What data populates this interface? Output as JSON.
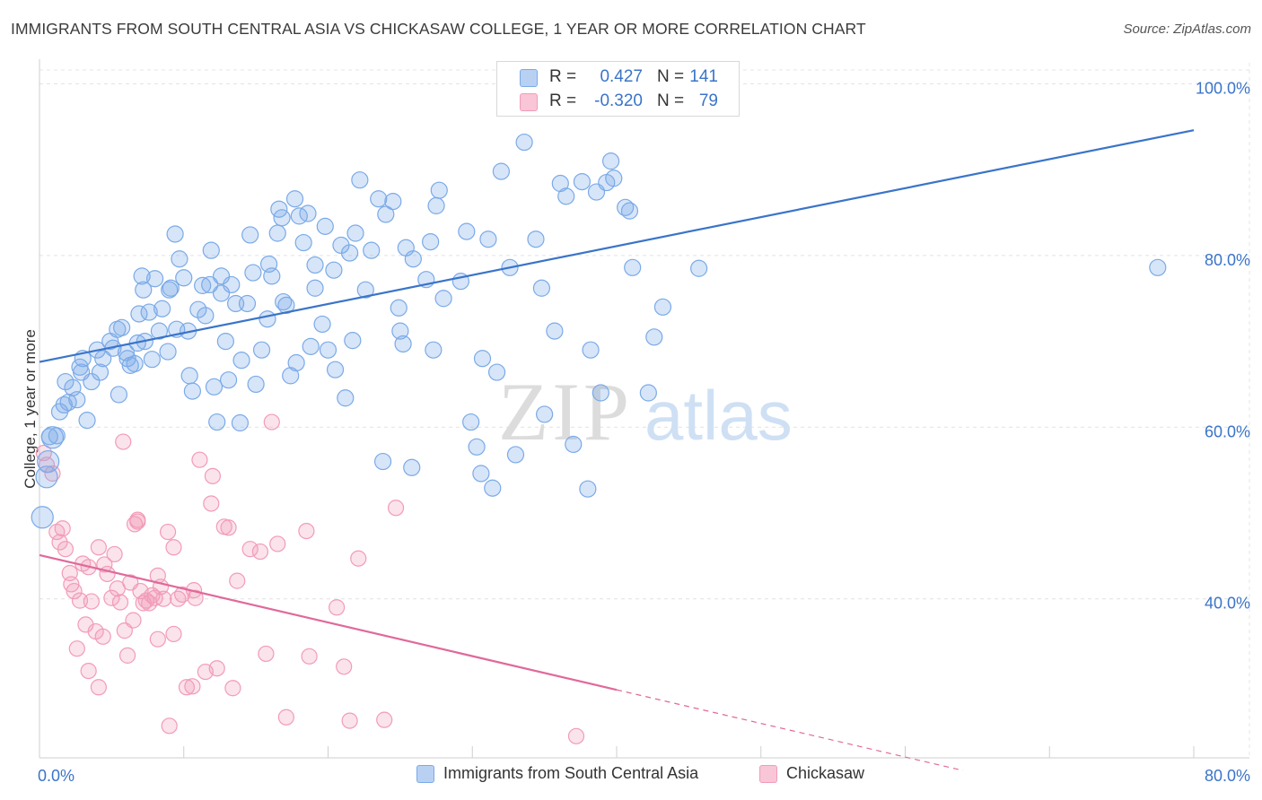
{
  "title": "IMMIGRANTS FROM SOUTH CENTRAL ASIA VS CHICKASAW COLLEGE, 1 YEAR OR MORE CORRELATION CHART",
  "source": "Source: ZipAtlas.com",
  "watermark": {
    "zip": "ZIP",
    "atlas": "atlas"
  },
  "colors": {
    "blue": "#7aaae8",
    "blue_line": "#3a74c9",
    "pink": "#f29bb8",
    "pink_line": "#e0699a",
    "axis_text": "#3a74c9"
  },
  "legend": {
    "series1": {
      "r_label": "R =",
      "r_value": "0.427",
      "n_label": "N =",
      "n_value": "141"
    },
    "series2": {
      "r_label": "R =",
      "r_value": "-0.320",
      "n_label": "N =",
      "n_value": "79"
    }
  },
  "bottom_legend": {
    "series1": "Immigrants from South Central Asia",
    "series2": "Chickasaw"
  },
  "chart_data": {
    "type": "scatter",
    "title": "IMMIGRANTS FROM SOUTH CENTRAL ASIA VS CHICKASAW COLLEGE, 1 YEAR OR MORE CORRELATION CHART",
    "xlabel": "",
    "ylabel": "College, 1 year or more",
    "xlim": [
      0,
      80
    ],
    "ylim": [
      20,
      104
    ],
    "x_tick_labels": [
      {
        "value": 0,
        "label": "0.0%"
      },
      {
        "value": 80,
        "label": "80.0%"
      }
    ],
    "y_tick_labels": [
      {
        "value": 100,
        "label": "100.0%"
      },
      {
        "value": 80,
        "label": "80.0%"
      },
      {
        "value": 60,
        "label": "60.0%"
      },
      {
        "value": 40,
        "label": "40.0%"
      }
    ],
    "grid": true,
    "legend_position": "top-center",
    "series": [
      {
        "name": "Immigrants from South Central Asia",
        "color": "#7aaae8",
        "trend": {
          "x": [
            0,
            80
          ],
          "y": [
            67.6,
            94.6
          ]
        },
        "points": [
          [
            0.2,
            49.5
          ],
          [
            0.5,
            54.2
          ],
          [
            0.6,
            56.0
          ],
          [
            0.9,
            58.8
          ],
          [
            1.4,
            61.8
          ],
          [
            1.7,
            62.6
          ],
          [
            1.8,
            65.3
          ],
          [
            2.3,
            64.6
          ],
          [
            2.0,
            62.9
          ],
          [
            2.6,
            63.2
          ],
          [
            3.0,
            68.0
          ],
          [
            2.9,
            66.4
          ],
          [
            3.3,
            60.8
          ],
          [
            4.0,
            69.0
          ],
          [
            4.2,
            66.4
          ],
          [
            4.4,
            68.0
          ],
          [
            4.9,
            70.0
          ],
          [
            5.1,
            69.2
          ],
          [
            5.4,
            71.4
          ],
          [
            5.7,
            71.6
          ],
          [
            6.0,
            68.7
          ],
          [
            6.1,
            68.0
          ],
          [
            6.3,
            67.2
          ],
          [
            6.6,
            67.4
          ],
          [
            6.8,
            69.8
          ],
          [
            6.9,
            73.2
          ],
          [
            7.2,
            76.0
          ],
          [
            7.1,
            77.6
          ],
          [
            7.6,
            73.4
          ],
          [
            7.8,
            67.9
          ],
          [
            8.0,
            77.3
          ],
          [
            8.3,
            71.2
          ],
          [
            8.5,
            73.8
          ],
          [
            8.9,
            68.8
          ],
          [
            9.1,
            76.2
          ],
          [
            9.4,
            82.5
          ],
          [
            9.5,
            71.4
          ],
          [
            9.7,
            79.6
          ],
          [
            10.0,
            77.4
          ],
          [
            10.3,
            71.2
          ],
          [
            10.6,
            64.2
          ],
          [
            11.0,
            73.7
          ],
          [
            11.3,
            76.5
          ],
          [
            11.8,
            76.6
          ],
          [
            11.9,
            80.6
          ],
          [
            12.1,
            64.7
          ],
          [
            12.6,
            77.6
          ],
          [
            12.6,
            75.6
          ],
          [
            12.9,
            70.0
          ],
          [
            13.1,
            65.5
          ],
          [
            13.6,
            74.4
          ],
          [
            13.3,
            76.6
          ],
          [
            14.0,
            67.8
          ],
          [
            14.4,
            74.4
          ],
          [
            14.6,
            82.4
          ],
          [
            14.8,
            78.0
          ],
          [
            15.4,
            69.0
          ],
          [
            15.8,
            72.6
          ],
          [
            15.9,
            79.0
          ],
          [
            16.1,
            77.6
          ],
          [
            16.5,
            82.6
          ],
          [
            16.6,
            85.4
          ],
          [
            16.8,
            84.4
          ],
          [
            17.1,
            74.2
          ],
          [
            17.4,
            66.0
          ],
          [
            17.7,
            86.6
          ],
          [
            18.0,
            84.6
          ],
          [
            18.3,
            81.5
          ],
          [
            18.6,
            84.9
          ],
          [
            18.8,
            69.4
          ],
          [
            19.1,
            78.9
          ],
          [
            19.1,
            76.2
          ],
          [
            19.8,
            83.4
          ],
          [
            20.5,
            66.7
          ],
          [
            20.4,
            78.3
          ],
          [
            20.9,
            81.2
          ],
          [
            21.2,
            63.4
          ],
          [
            21.5,
            80.3
          ],
          [
            21.9,
            82.6
          ],
          [
            22.2,
            88.8
          ],
          [
            22.6,
            76.0
          ],
          [
            23.0,
            80.6
          ],
          [
            23.5,
            86.6
          ],
          [
            24.0,
            84.8
          ],
          [
            24.5,
            86.3
          ],
          [
            25.0,
            71.2
          ],
          [
            25.2,
            69.7
          ],
          [
            25.4,
            80.9
          ],
          [
            25.9,
            79.6
          ],
          [
            26.8,
            77.2
          ],
          [
            27.1,
            81.6
          ],
          [
            27.7,
            87.6
          ],
          [
            27.5,
            85.8
          ],
          [
            29.6,
            82.8
          ],
          [
            29.9,
            60.6
          ],
          [
            30.3,
            57.7
          ],
          [
            30.6,
            54.6
          ],
          [
            31.1,
            81.9
          ],
          [
            31.4,
            52.9
          ],
          [
            32.0,
            89.8
          ],
          [
            32.6,
            78.6
          ],
          [
            33.6,
            93.2
          ],
          [
            34.4,
            81.9
          ],
          [
            35.7,
            71.2
          ],
          [
            36.1,
            88.4
          ],
          [
            36.5,
            86.9
          ],
          [
            37.6,
            88.6
          ],
          [
            38.0,
            52.8
          ],
          [
            38.6,
            87.4
          ],
          [
            38.9,
            64.0
          ],
          [
            39.3,
            88.5
          ],
          [
            39.6,
            91.0
          ],
          [
            39.8,
            89.0
          ],
          [
            40.6,
            85.6
          ],
          [
            40.9,
            85.2
          ],
          [
            41.1,
            78.6
          ],
          [
            42.2,
            64.0
          ],
          [
            43.2,
            74.0
          ],
          [
            45.7,
            78.5
          ],
          [
            77.5,
            78.6
          ],
          [
            0.7,
            58.9
          ],
          [
            1.2,
            59.0
          ],
          [
            2.8,
            67.0
          ],
          [
            3.6,
            65.3
          ],
          [
            5.5,
            63.8
          ],
          [
            7.3,
            70.0
          ],
          [
            9.0,
            76.0
          ],
          [
            11.5,
            73.0
          ],
          [
            13.9,
            60.5
          ],
          [
            15.0,
            65.0
          ],
          [
            17.8,
            67.5
          ],
          [
            20.0,
            69.0
          ],
          [
            23.8,
            56.0
          ],
          [
            25.8,
            55.3
          ],
          [
            28.0,
            75.0
          ],
          [
            29.2,
            77.0
          ],
          [
            31.7,
            66.4
          ],
          [
            33.0,
            56.8
          ],
          [
            35.0,
            61.5
          ],
          [
            37.0,
            58.0
          ],
          [
            10.4,
            66.0
          ],
          [
            12.3,
            60.6
          ],
          [
            16.9,
            74.6
          ],
          [
            19.6,
            72.0
          ],
          [
            21.7,
            70.1
          ],
          [
            24.9,
            73.9
          ],
          [
            27.3,
            69.0
          ],
          [
            30.7,
            68.0
          ],
          [
            34.8,
            76.2
          ],
          [
            38.2,
            69.0
          ],
          [
            42.6,
            70.5
          ]
        ]
      },
      {
        "name": "Chickasaw",
        "color": "#f29bb8",
        "trend": {
          "x": [
            0,
            40
          ],
          "y": [
            45.1,
            29.4
          ]
        },
        "trend_dashed": {
          "x": [
            40,
            64
          ],
          "y": [
            29.4,
            20.0
          ]
        },
        "points": [
          [
            0.3,
            57.0
          ],
          [
            0.5,
            55.6
          ],
          [
            0.9,
            54.6
          ],
          [
            1.2,
            47.8
          ],
          [
            1.4,
            46.6
          ],
          [
            1.6,
            48.2
          ],
          [
            1.8,
            45.8
          ],
          [
            2.1,
            43.0
          ],
          [
            2.2,
            41.7
          ],
          [
            2.4,
            40.9
          ],
          [
            2.6,
            34.2
          ],
          [
            2.8,
            39.8
          ],
          [
            3.0,
            44.1
          ],
          [
            3.2,
            37.0
          ],
          [
            3.4,
            31.6
          ],
          [
            3.6,
            39.7
          ],
          [
            3.9,
            36.2
          ],
          [
            4.1,
            29.7
          ],
          [
            4.4,
            35.6
          ],
          [
            4.5,
            44.0
          ],
          [
            4.7,
            42.9
          ],
          [
            5.0,
            40.1
          ],
          [
            5.2,
            45.2
          ],
          [
            5.4,
            41.2
          ],
          [
            5.6,
            39.6
          ],
          [
            5.8,
            58.3
          ],
          [
            6.1,
            33.4
          ],
          [
            6.3,
            41.9
          ],
          [
            6.5,
            37.5
          ],
          [
            6.6,
            48.7
          ],
          [
            6.8,
            49.2
          ],
          [
            7.0,
            40.9
          ],
          [
            7.2,
            39.5
          ],
          [
            7.4,
            39.8
          ],
          [
            7.6,
            39.5
          ],
          [
            7.8,
            40.4
          ],
          [
            8.0,
            40.1
          ],
          [
            8.2,
            35.3
          ],
          [
            8.4,
            41.4
          ],
          [
            8.6,
            40.0
          ],
          [
            8.9,
            47.8
          ],
          [
            9.0,
            25.2
          ],
          [
            9.3,
            35.9
          ],
          [
            9.6,
            40.0
          ],
          [
            9.9,
            40.5
          ],
          [
            10.2,
            29.7
          ],
          [
            10.6,
            29.8
          ],
          [
            10.8,
            40.1
          ],
          [
            11.1,
            56.2
          ],
          [
            11.5,
            31.5
          ],
          [
            11.9,
            51.1
          ],
          [
            12.0,
            54.3
          ],
          [
            12.3,
            31.9
          ],
          [
            13.1,
            48.3
          ],
          [
            13.4,
            29.6
          ],
          [
            14.6,
            45.8
          ],
          [
            15.3,
            45.5
          ],
          [
            15.7,
            33.6
          ],
          [
            16.1,
            60.6
          ],
          [
            16.5,
            46.4
          ],
          [
            17.1,
            26.2
          ],
          [
            18.7,
            33.3
          ],
          [
            20.6,
            39.0
          ],
          [
            21.1,
            32.1
          ],
          [
            21.5,
            25.8
          ],
          [
            22.1,
            44.7
          ],
          [
            23.9,
            25.9
          ],
          [
            24.7,
            50.6
          ],
          [
            37.2,
            24.0
          ],
          [
            18.5,
            47.9
          ],
          [
            12.8,
            48.4
          ],
          [
            8.2,
            42.7
          ],
          [
            6.8,
            49.0
          ],
          [
            3.4,
            43.7
          ],
          [
            10.7,
            41.0
          ],
          [
            13.7,
            42.1
          ],
          [
            5.9,
            36.3
          ],
          [
            4.1,
            46.0
          ],
          [
            9.3,
            46.0
          ]
        ]
      }
    ]
  }
}
